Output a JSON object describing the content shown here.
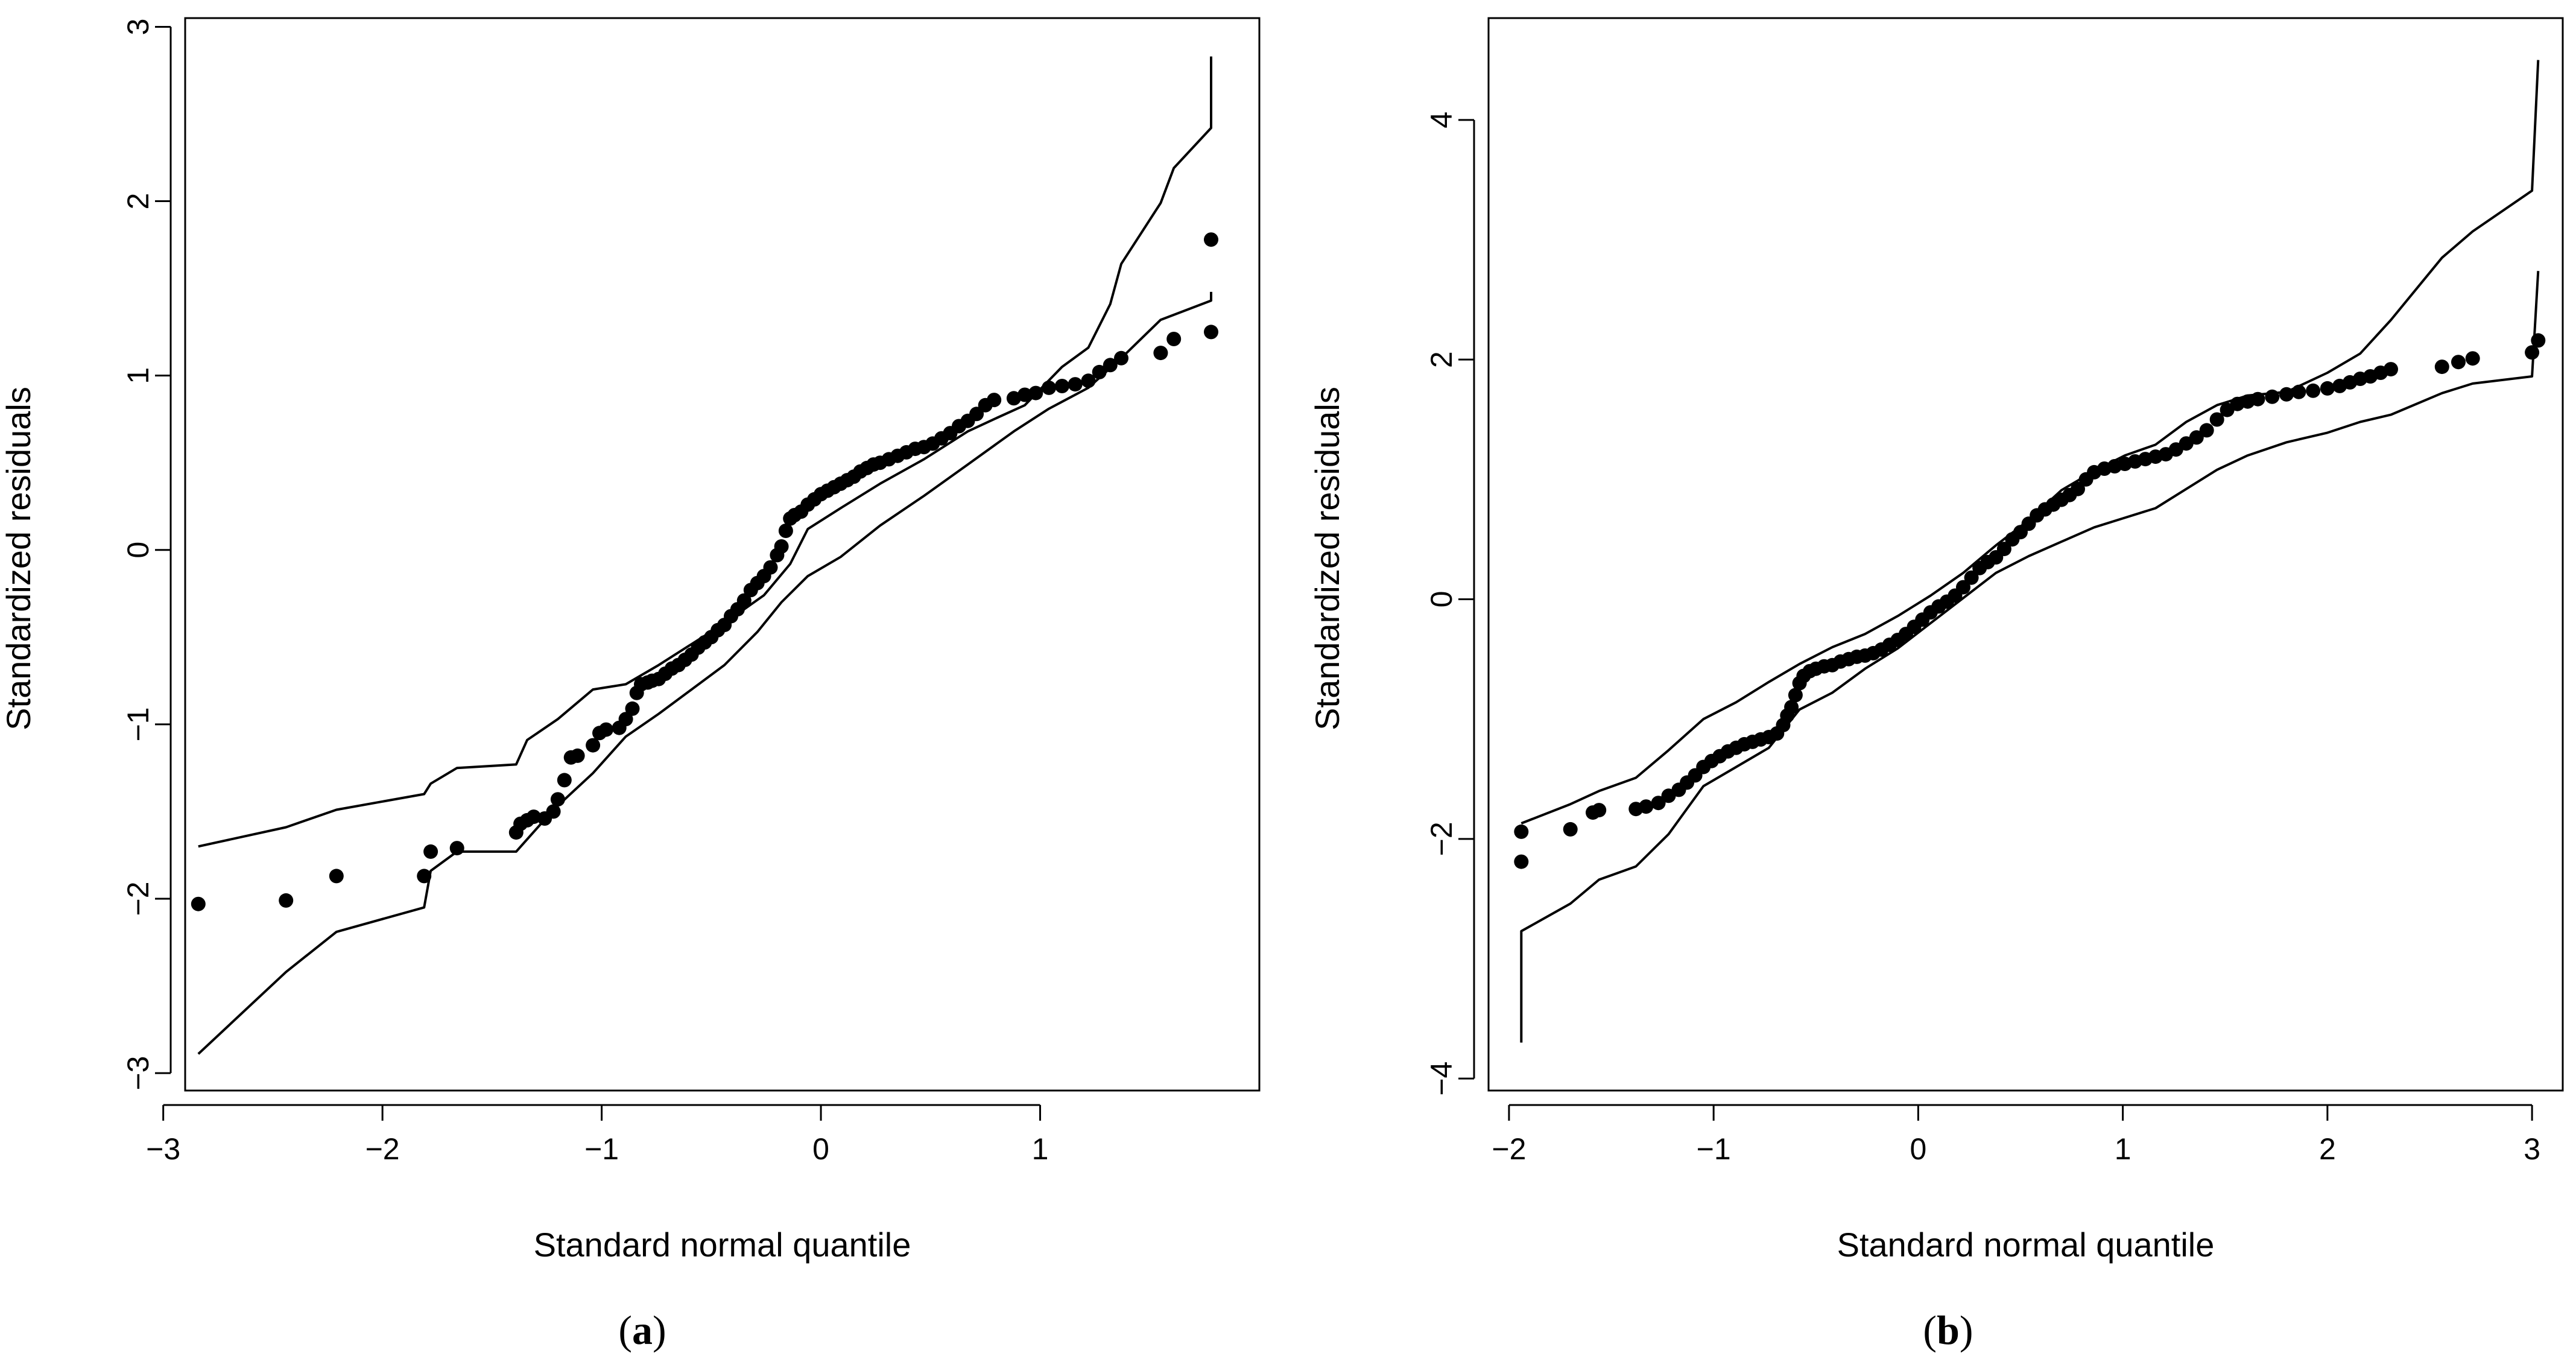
{
  "chart_data": [
    {
      "type": "scatter",
      "panel": "(a)",
      "panel_letter": "a",
      "xlabel": "Standard normal quantile",
      "ylabel": "Standardized residuals",
      "xlim": [
        -2.9,
        2.0
      ],
      "ylim": [
        -3.1,
        3.05
      ],
      "xticks": [
        -3,
        -2,
        -1,
        0,
        1
      ],
      "yticks": [
        -3,
        -2,
        -1,
        0,
        1,
        2,
        3
      ],
      "tick_labels_x": [
        "−3",
        "−2",
        "−1",
        "0",
        "1"
      ],
      "tick_labels_y": [
        "−3",
        "−2",
        "−1",
        "0",
        "1",
        "2",
        "3"
      ],
      "points": [
        [
          -2.84,
          -2.03
        ],
        [
          -2.44,
          -2.01
        ],
        [
          -2.21,
          -1.87
        ],
        [
          -1.81,
          -1.87
        ],
        [
          -1.78,
          -1.73
        ],
        [
          -1.66,
          -1.71
        ],
        [
          -1.39,
          -1.62
        ],
        [
          -1.37,
          -1.57
        ],
        [
          -1.34,
          -1.55
        ],
        [
          -1.31,
          -1.53
        ],
        [
          -1.26,
          -1.54
        ],
        [
          -1.22,
          -1.5
        ],
        [
          -1.2,
          -1.43
        ],
        [
          -1.17,
          -1.32
        ],
        [
          -1.14,
          -1.19
        ],
        [
          -1.11,
          -1.18
        ],
        [
          -1.04,
          -1.12
        ],
        [
          -1.01,
          -1.05
        ],
        [
          -0.98,
          -1.03
        ],
        [
          -0.92,
          -1.02
        ],
        [
          -0.89,
          -0.97
        ],
        [
          -0.86,
          -0.91
        ],
        [
          -0.84,
          -0.82
        ],
        [
          -0.82,
          -0.77
        ],
        [
          -0.79,
          -0.76
        ],
        [
          -0.77,
          -0.75
        ],
        [
          -0.74,
          -0.74
        ],
        [
          -0.71,
          -0.71
        ],
        [
          -0.68,
          -0.68
        ],
        [
          -0.65,
          -0.66
        ],
        [
          -0.62,
          -0.63
        ],
        [
          -0.59,
          -0.6
        ],
        [
          -0.56,
          -0.56
        ],
        [
          -0.53,
          -0.53
        ],
        [
          -0.5,
          -0.5
        ],
        [
          -0.47,
          -0.46
        ],
        [
          -0.44,
          -0.43
        ],
        [
          -0.41,
          -0.38
        ],
        [
          -0.38,
          -0.34
        ],
        [
          -0.35,
          -0.29
        ],
        [
          -0.32,
          -0.23
        ],
        [
          -0.29,
          -0.19
        ],
        [
          -0.26,
          -0.15
        ],
        [
          -0.23,
          -0.1
        ],
        [
          -0.2,
          -0.03
        ],
        [
          -0.18,
          0.02
        ],
        [
          -0.16,
          0.11
        ],
        [
          -0.14,
          0.18
        ],
        [
          -0.12,
          0.2
        ],
        [
          -0.09,
          0.22
        ],
        [
          -0.06,
          0.26
        ],
        [
          -0.03,
          0.29
        ],
        [
          0.0,
          0.32
        ],
        [
          0.03,
          0.34
        ],
        [
          0.06,
          0.36
        ],
        [
          0.09,
          0.38
        ],
        [
          0.12,
          0.4
        ],
        [
          0.15,
          0.42
        ],
        [
          0.18,
          0.45
        ],
        [
          0.21,
          0.47
        ],
        [
          0.24,
          0.49
        ],
        [
          0.27,
          0.5
        ],
        [
          0.31,
          0.52
        ],
        [
          0.35,
          0.54
        ],
        [
          0.39,
          0.56
        ],
        [
          0.43,
          0.58
        ],
        [
          0.47,
          0.59
        ],
        [
          0.51,
          0.61
        ],
        [
          0.55,
          0.64
        ],
        [
          0.59,
          0.67
        ],
        [
          0.63,
          0.71
        ],
        [
          0.67,
          0.74
        ],
        [
          0.71,
          0.78
        ],
        [
          0.75,
          0.83
        ],
        [
          0.79,
          0.86
        ],
        [
          0.88,
          0.87
        ],
        [
          0.93,
          0.89
        ],
        [
          0.98,
          0.9
        ],
        [
          1.04,
          0.93
        ],
        [
          1.1,
          0.94
        ],
        [
          1.16,
          0.95
        ],
        [
          1.22,
          0.97
        ],
        [
          1.27,
          1.02
        ],
        [
          1.32,
          1.06
        ],
        [
          1.37,
          1.1
        ],
        [
          1.55,
          1.13
        ],
        [
          1.61,
          1.21
        ],
        [
          1.78,
          1.25
        ],
        [
          1.78,
          1.78
        ]
      ],
      "upper_envelope": [
        [
          -2.84,
          -1.7
        ],
        [
          -2.44,
          -1.59
        ],
        [
          -2.21,
          -1.49
        ],
        [
          -1.81,
          -1.4
        ],
        [
          -1.78,
          -1.34
        ],
        [
          -1.66,
          -1.25
        ],
        [
          -1.39,
          -1.23
        ],
        [
          -1.34,
          -1.09
        ],
        [
          -1.2,
          -0.97
        ],
        [
          -1.04,
          -0.8
        ],
        [
          -0.89,
          -0.77
        ],
        [
          -0.74,
          -0.66
        ],
        [
          -0.59,
          -0.54
        ],
        [
          -0.44,
          -0.42
        ],
        [
          -0.26,
          -0.26
        ],
        [
          -0.14,
          -0.08
        ],
        [
          -0.06,
          0.12
        ],
        [
          0.09,
          0.24
        ],
        [
          0.27,
          0.38
        ],
        [
          0.47,
          0.52
        ],
        [
          0.67,
          0.68
        ],
        [
          0.79,
          0.75
        ],
        [
          0.93,
          0.83
        ],
        [
          1.1,
          1.05
        ],
        [
          1.22,
          1.16
        ],
        [
          1.32,
          1.41
        ],
        [
          1.37,
          1.64
        ],
        [
          1.55,
          1.99
        ],
        [
          1.61,
          2.19
        ],
        [
          1.78,
          2.42
        ],
        [
          1.78,
          2.83
        ]
      ],
      "lower_envelope": [
        [
          -2.84,
          -2.89
        ],
        [
          -2.44,
          -2.42
        ],
        [
          -2.21,
          -2.19
        ],
        [
          -1.81,
          -2.05
        ],
        [
          -1.78,
          -1.84
        ],
        [
          -1.66,
          -1.73
        ],
        [
          -1.39,
          -1.73
        ],
        [
          -1.22,
          -1.49
        ],
        [
          -1.04,
          -1.28
        ],
        [
          -0.89,
          -1.07
        ],
        [
          -0.74,
          -0.94
        ],
        [
          -0.59,
          -0.8
        ],
        [
          -0.44,
          -0.66
        ],
        [
          -0.29,
          -0.47
        ],
        [
          -0.18,
          -0.3
        ],
        [
          -0.06,
          -0.15
        ],
        [
          0.09,
          -0.04
        ],
        [
          0.27,
          0.14
        ],
        [
          0.47,
          0.31
        ],
        [
          0.67,
          0.49
        ],
        [
          0.88,
          0.68
        ],
        [
          1.04,
          0.81
        ],
        [
          1.22,
          0.93
        ],
        [
          1.37,
          1.1
        ],
        [
          1.55,
          1.32
        ],
        [
          1.78,
          1.43
        ],
        [
          1.78,
          1.48
        ]
      ]
    },
    {
      "type": "scatter",
      "panel": "(b)",
      "panel_letter": "b",
      "xlabel": "Standard normal quantile",
      "ylabel": "Standardized residuals",
      "xlim": [
        -2.1,
        3.15
      ],
      "ylim": [
        -4.1,
        4.85
      ],
      "xticks": [
        -2,
        -1,
        0,
        1,
        2,
        3
      ],
      "yticks": [
        -4,
        -2,
        0,
        2,
        4
      ],
      "tick_labels_x": [
        "−2",
        "−1",
        "0",
        "1",
        "2",
        "3"
      ],
      "tick_labels_y": [
        "−4",
        "−2",
        "0",
        "2",
        "4"
      ],
      "points": [
        [
          -1.94,
          -2.19
        ],
        [
          -1.94,
          -1.94
        ],
        [
          -1.7,
          -1.92
        ],
        [
          -1.59,
          -1.78
        ],
        [
          -1.56,
          -1.76
        ],
        [
          -1.38,
          -1.75
        ],
        [
          -1.33,
          -1.73
        ],
        [
          -1.27,
          -1.7
        ],
        [
          -1.22,
          -1.64
        ],
        [
          -1.17,
          -1.59
        ],
        [
          -1.13,
          -1.53
        ],
        [
          -1.09,
          -1.47
        ],
        [
          -1.05,
          -1.4
        ],
        [
          -1.01,
          -1.35
        ],
        [
          -0.97,
          -1.31
        ],
        [
          -0.93,
          -1.27
        ],
        [
          -0.89,
          -1.24
        ],
        [
          -0.85,
          -1.21
        ],
        [
          -0.81,
          -1.19
        ],
        [
          -0.77,
          -1.17
        ],
        [
          -0.73,
          -1.15
        ],
        [
          -0.69,
          -1.12
        ],
        [
          -0.66,
          -1.05
        ],
        [
          -0.64,
          -0.97
        ],
        [
          -0.62,
          -0.9
        ],
        [
          -0.6,
          -0.8
        ],
        [
          -0.58,
          -0.7
        ],
        [
          -0.56,
          -0.64
        ],
        [
          -0.53,
          -0.6
        ],
        [
          -0.5,
          -0.58
        ],
        [
          -0.46,
          -0.56
        ],
        [
          -0.42,
          -0.55
        ],
        [
          -0.38,
          -0.52
        ],
        [
          -0.34,
          -0.5
        ],
        [
          -0.3,
          -0.48
        ],
        [
          -0.26,
          -0.47
        ],
        [
          -0.22,
          -0.45
        ],
        [
          -0.18,
          -0.42
        ],
        [
          -0.14,
          -0.38
        ],
        [
          -0.1,
          -0.34
        ],
        [
          -0.06,
          -0.29
        ],
        [
          -0.02,
          -0.23
        ],
        [
          0.02,
          -0.17
        ],
        [
          0.06,
          -0.11
        ],
        [
          0.1,
          -0.06
        ],
        [
          0.14,
          -0.02
        ],
        [
          0.18,
          0.03
        ],
        [
          0.22,
          0.1
        ],
        [
          0.26,
          0.18
        ],
        [
          0.3,
          0.26
        ],
        [
          0.34,
          0.31
        ],
        [
          0.38,
          0.35
        ],
        [
          0.42,
          0.42
        ],
        [
          0.46,
          0.5
        ],
        [
          0.5,
          0.56
        ],
        [
          0.54,
          0.63
        ],
        [
          0.58,
          0.7
        ],
        [
          0.62,
          0.75
        ],
        [
          0.66,
          0.79
        ],
        [
          0.7,
          0.83
        ],
        [
          0.74,
          0.87
        ],
        [
          0.78,
          0.92
        ],
        [
          0.82,
          1.0
        ],
        [
          0.86,
          1.06
        ],
        [
          0.91,
          1.09
        ],
        [
          0.96,
          1.11
        ],
        [
          1.01,
          1.13
        ],
        [
          1.06,
          1.15
        ],
        [
          1.11,
          1.17
        ],
        [
          1.16,
          1.19
        ],
        [
          1.21,
          1.21
        ],
        [
          1.26,
          1.25
        ],
        [
          1.31,
          1.3
        ],
        [
          1.36,
          1.35
        ],
        [
          1.41,
          1.41
        ],
        [
          1.46,
          1.5
        ],
        [
          1.51,
          1.58
        ],
        [
          1.56,
          1.63
        ],
        [
          1.61,
          1.65
        ],
        [
          1.66,
          1.67
        ],
        [
          1.73,
          1.69
        ],
        [
          1.8,
          1.71
        ],
        [
          1.86,
          1.73
        ],
        [
          1.93,
          1.74
        ],
        [
          2.0,
          1.76
        ],
        [
          2.06,
          1.78
        ],
        [
          2.11,
          1.81
        ],
        [
          2.16,
          1.84
        ],
        [
          2.21,
          1.86
        ],
        [
          2.26,
          1.89
        ],
        [
          2.31,
          1.92
        ],
        [
          2.56,
          1.94
        ],
        [
          2.64,
          1.98
        ],
        [
          2.71,
          2.01
        ],
        [
          3.0,
          2.06
        ],
        [
          3.03,
          2.16
        ]
      ],
      "upper_envelope": [
        [
          -1.94,
          -1.87
        ],
        [
          -1.7,
          -1.71
        ],
        [
          -1.56,
          -1.6
        ],
        [
          -1.38,
          -1.49
        ],
        [
          -1.22,
          -1.26
        ],
        [
          -1.05,
          -1.0
        ],
        [
          -0.89,
          -0.86
        ],
        [
          -0.73,
          -0.69
        ],
        [
          -0.58,
          -0.54
        ],
        [
          -0.42,
          -0.4
        ],
        [
          -0.26,
          -0.29
        ],
        [
          -0.1,
          -0.14
        ],
        [
          0.06,
          0.03
        ],
        [
          0.22,
          0.22
        ],
        [
          0.38,
          0.45
        ],
        [
          0.54,
          0.66
        ],
        [
          0.7,
          0.91
        ],
        [
          0.86,
          1.07
        ],
        [
          1.01,
          1.2
        ],
        [
          1.16,
          1.29
        ],
        [
          1.31,
          1.48
        ],
        [
          1.46,
          1.62
        ],
        [
          1.61,
          1.7
        ],
        [
          1.8,
          1.73
        ],
        [
          2.0,
          1.89
        ],
        [
          2.16,
          2.05
        ],
        [
          2.31,
          2.33
        ],
        [
          2.56,
          2.85
        ],
        [
          2.71,
          3.07
        ],
        [
          3.0,
          3.41
        ],
        [
          3.03,
          4.5
        ]
      ],
      "lower_envelope": [
        [
          -1.94,
          -3.7
        ],
        [
          -1.94,
          -2.77
        ],
        [
          -1.7,
          -2.54
        ],
        [
          -1.56,
          -2.34
        ],
        [
          -1.38,
          -2.23
        ],
        [
          -1.22,
          -1.96
        ],
        [
          -1.05,
          -1.56
        ],
        [
          -0.89,
          -1.4
        ],
        [
          -0.73,
          -1.24
        ],
        [
          -0.58,
          -0.92
        ],
        [
          -0.42,
          -0.78
        ],
        [
          -0.26,
          -0.58
        ],
        [
          -0.1,
          -0.41
        ],
        [
          0.06,
          -0.2
        ],
        [
          0.22,
          0.01
        ],
        [
          0.38,
          0.22
        ],
        [
          0.54,
          0.36
        ],
        [
          0.7,
          0.48
        ],
        [
          0.86,
          0.6
        ],
        [
          1.01,
          0.68
        ],
        [
          1.16,
          0.76
        ],
        [
          1.31,
          0.92
        ],
        [
          1.46,
          1.08
        ],
        [
          1.61,
          1.2
        ],
        [
          1.8,
          1.31
        ],
        [
          2.0,
          1.39
        ],
        [
          2.16,
          1.48
        ],
        [
          2.31,
          1.54
        ],
        [
          2.56,
          1.72
        ],
        [
          2.71,
          1.8
        ],
        [
          3.0,
          1.86
        ],
        [
          3.03,
          2.74
        ]
      ]
    }
  ]
}
